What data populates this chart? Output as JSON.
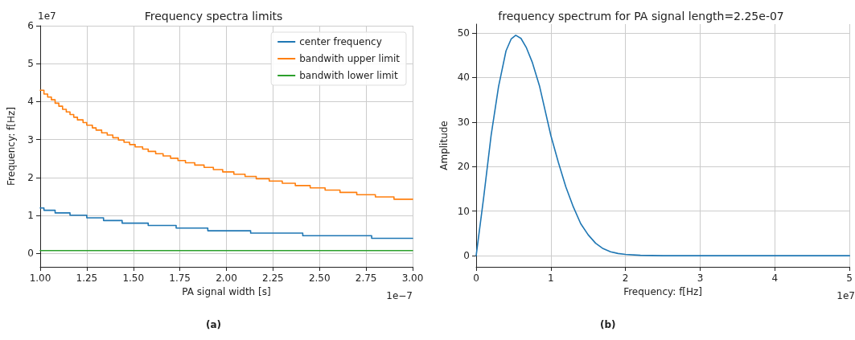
{
  "chart_data": [
    {
      "type": "step",
      "title": "Frequency spectra limits",
      "xlabel": "PA signal width [s]",
      "ylabel": "Frequency: f[Hz]",
      "xlim": [
        1,
        3
      ],
      "xticks": [
        {
          "value": 1,
          "label": "1.00"
        },
        {
          "value": 1.25,
          "label": "1.25"
        },
        {
          "value": 1.5,
          "label": "1.50"
        },
        {
          "value": 1.75,
          "label": "1.75"
        },
        {
          "value": 2,
          "label": "2.00"
        },
        {
          "value": 2.25,
          "label": "2.25"
        },
        {
          "value": 2.5,
          "label": "2.50"
        },
        {
          "value": 2.75,
          "label": "2.75"
        },
        {
          "value": 3,
          "label": "3.00"
        }
      ],
      "ylim": [
        -0.35,
        6
      ],
      "yticks": [
        0,
        1,
        2,
        3,
        4,
        5,
        6
      ],
      "grid": true,
      "legend": "top right",
      "annotations": [
        "1e7",
        "1e−7",
        "(a)"
      ],
      "series": [
        {
          "name": "center frequency",
          "color": "#1f77b4",
          "x": [
            1.0,
            1.02,
            1.08,
            1.16,
            1.25,
            1.34,
            1.44,
            1.58,
            1.73,
            1.9,
            2.13,
            2.41,
            2.78,
            3.0
          ],
          "values": [
            1.2,
            1.14,
            1.07,
            1.01,
            0.94,
            0.87,
            0.8,
            0.74,
            0.67,
            0.6,
            0.54,
            0.47,
            0.4,
            0.4
          ]
        },
        {
          "name": "bandwith upper limit",
          "color": "#ff7f0e",
          "x": [
            1.0,
            1.02,
            1.04,
            1.06,
            1.08,
            1.1,
            1.12,
            1.14,
            1.16,
            1.18,
            1.2,
            1.23,
            1.25,
            1.28,
            1.3,
            1.33,
            1.36,
            1.39,
            1.42,
            1.45,
            1.48,
            1.51,
            1.55,
            1.58,
            1.62,
            1.66,
            1.7,
            1.74,
            1.78,
            1.83,
            1.88,
            1.93,
            1.98,
            2.04,
            2.1,
            2.16,
            2.23,
            2.3,
            2.37,
            2.45,
            2.53,
            2.61,
            2.7,
            2.8,
            2.9,
            3.0
          ],
          "values": [
            4.3,
            4.2,
            4.12,
            4.05,
            3.96,
            3.88,
            3.8,
            3.73,
            3.66,
            3.59,
            3.52,
            3.45,
            3.38,
            3.31,
            3.25,
            3.18,
            3.12,
            3.05,
            2.99,
            2.93,
            2.87,
            2.81,
            2.75,
            2.69,
            2.63,
            2.57,
            2.51,
            2.45,
            2.39,
            2.33,
            2.27,
            2.21,
            2.15,
            2.09,
            2.03,
            1.97,
            1.91,
            1.85,
            1.79,
            1.73,
            1.67,
            1.61,
            1.55,
            1.49,
            1.43,
            1.43
          ]
        },
        {
          "name": "bandwith lower limit",
          "color": "#2ca02c",
          "x": [
            1.0,
            3.0
          ],
          "values": [
            0.08,
            0.08
          ]
        }
      ]
    },
    {
      "type": "line",
      "title": "frequency spectrum for PA signal length=2.25e-07",
      "xlabel": "Frequency: f[Hz]",
      "ylabel": "Amplitude",
      "xlim": [
        0,
        5
      ],
      "xticks": [
        0,
        1,
        2,
        3,
        4,
        5
      ],
      "ylim": [
        -2.5,
        52
      ],
      "yticks": [
        0,
        10,
        20,
        30,
        40,
        50
      ],
      "grid": true,
      "annotations": [
        "1e7",
        "(b)"
      ],
      "series": [
        {
          "color": "#1f77b4",
          "x": [
            0,
            0.1,
            0.2,
            0.3,
            0.4,
            0.47,
            0.53,
            0.6,
            0.67,
            0.75,
            0.85,
            1.0,
            1.1,
            1.2,
            1.3,
            1.4,
            1.5,
            1.6,
            1.7,
            1.8,
            1.9,
            2.0,
            2.2,
            2.5,
            3.0,
            4.0,
            5.0
          ],
          "values": [
            0,
            13,
            27,
            38,
            46,
            48.7,
            49.5,
            48.8,
            46.8,
            43.5,
            38,
            27,
            21,
            15.5,
            11,
            7.2,
            4.7,
            2.8,
            1.6,
            0.9,
            0.5,
            0.3,
            0.1,
            0,
            0,
            0,
            0
          ]
        }
      ]
    }
  ]
}
